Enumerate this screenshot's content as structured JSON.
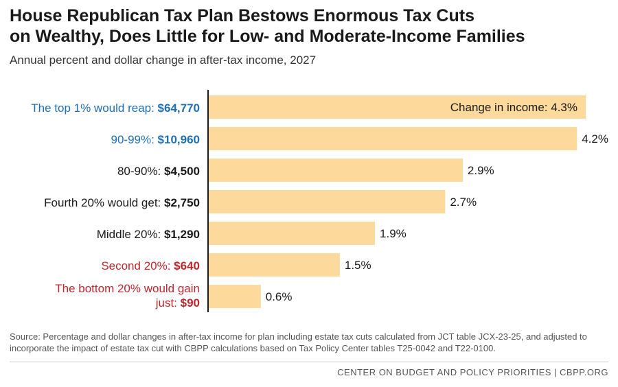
{
  "title_line1": "House Republican Tax Plan Bestows Enormous Tax Cuts",
  "title_line2": "on Wealthy, Does Little for Low- and Moderate-Income Families",
  "subtitle": "Annual percent and dollar change in after-tax income, 2027",
  "chart_data": {
    "type": "bar",
    "orientation": "horizontal",
    "categories": [
      {
        "pre": "The top 1% would reap: ",
        "amount": "$64,770",
        "color": "#1f6fb5"
      },
      {
        "pre": "90-99%: ",
        "amount": "$10,960",
        "color": "#1f6fb5"
      },
      {
        "pre": "80-90%: ",
        "amount": "$4,500",
        "color": "#1a1a1a"
      },
      {
        "pre": "Fourth 20% would get: ",
        "amount": "$2,750",
        "color": "#1a1a1a"
      },
      {
        "pre": "Middle 20%: ",
        "amount": "$1,290",
        "color": "#1a1a1a"
      },
      {
        "pre": "Second 20%: ",
        "amount": "$640",
        "color": "#c0272d"
      },
      {
        "pre_line1": "The bottom 20% would gain",
        "pre": "just: ",
        "amount": "$90",
        "color": "#c0272d"
      }
    ],
    "values": [
      4.3,
      4.2,
      2.9,
      2.7,
      1.9,
      1.5,
      0.6
    ],
    "value_labels": [
      "Change in income: 4.3%",
      "4.2%",
      "2.9%",
      "2.7%",
      "1.9%",
      "1.5%",
      "0.6%"
    ],
    "bar_color": "#fdd99b",
    "axis_color": "#1a1a1a",
    "xlim": [
      0,
      4.3
    ],
    "grid": false,
    "legend": "none"
  },
  "source": "Source: Percentage and dollar changes in after-tax income for plan including estate tax cuts calculated from JCT table JCX-23-25, and adjusted to incorporate the impact of estate tax cut with CBPP calculations based on Tax Policy Center tables T25-0042 and T22-0100.",
  "footer": "CENTER ON BUDGET AND POLICY PRIORITIES | CBPP.ORG"
}
